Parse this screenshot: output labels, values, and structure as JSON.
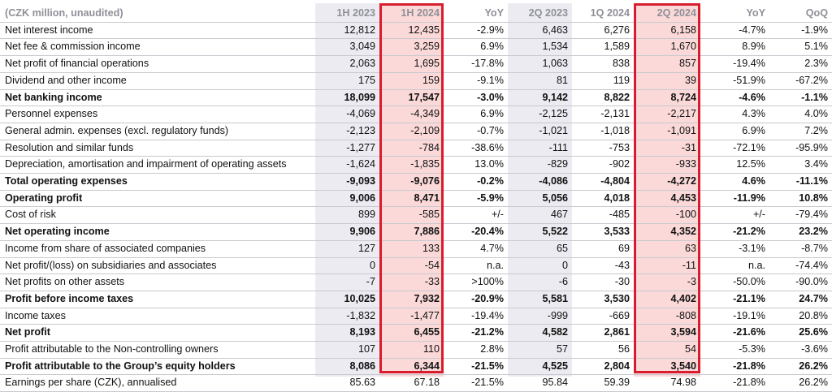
{
  "header": {
    "label": "(CZK million, unaudited)",
    "cols": [
      "1H 2023",
      "1H 2024",
      "YoY",
      "2Q 2023",
      "1Q 2024",
      "2Q 2024",
      "YoY",
      "QoQ"
    ]
  },
  "rows": [
    {
      "label": "Net interest income",
      "values": [
        "12,812",
        "12,435",
        "-2.9%",
        "6,463",
        "6,276",
        "6,158",
        "-4.7%",
        "-1.9%"
      ]
    },
    {
      "label": "Net fee & commission income",
      "values": [
        "3,049",
        "3,259",
        "6.9%",
        "1,534",
        "1,589",
        "1,670",
        "8.9%",
        "5.1%"
      ]
    },
    {
      "label": "Net profit of financial operations",
      "values": [
        "2,063",
        "1,695",
        "-17.8%",
        "1,063",
        "838",
        "857",
        "-19.4%",
        "2.3%"
      ]
    },
    {
      "label": "Dividend and other income",
      "values": [
        "175",
        "159",
        "-9.1%",
        "81",
        "119",
        "39",
        "-51.9%",
        "-67.2%"
      ]
    },
    {
      "label": "Net banking income",
      "bold": true,
      "values": [
        "18,099",
        "17,547",
        "-3.0%",
        "9,142",
        "8,822",
        "8,724",
        "-4.6%",
        "-1.1%"
      ]
    },
    {
      "label": "Personnel expenses",
      "values": [
        "-4,069",
        "-4,349",
        "6.9%",
        "-2,125",
        "-2,131",
        "-2,217",
        "4.3%",
        "4.0%"
      ]
    },
    {
      "label": "General admin. expenses (excl. regulatory funds)",
      "values": [
        "-2,123",
        "-2,109",
        "-0.7%",
        "-1,021",
        "-1,018",
        "-1,091",
        "6.9%",
        "7.2%"
      ]
    },
    {
      "label": "Resolution and similar funds",
      "values": [
        "-1,277",
        "-784",
        "-38.6%",
        "-111",
        "-753",
        "-31",
        "-72.1%",
        "-95.9%"
      ]
    },
    {
      "label": "Depreciation, amortisation and impairment of operating assets",
      "values": [
        "-1,624",
        "-1,835",
        "13.0%",
        "-829",
        "-902",
        "-933",
        "12.5%",
        "3.4%"
      ]
    },
    {
      "label": "Total operating expenses",
      "bold": true,
      "values": [
        "-9,093",
        "-9,076",
        "-0.2%",
        "-4,086",
        "-4,804",
        "-4,272",
        "4.6%",
        "-11.1%"
      ]
    },
    {
      "label": "Operating profit",
      "bold": true,
      "topline": true,
      "values": [
        "9,006",
        "8,471",
        "-5.9%",
        "5,056",
        "4,018",
        "4,453",
        "-11.9%",
        "10.8%"
      ]
    },
    {
      "label": "Cost of risk",
      "values": [
        "899",
        "-585",
        "+/-",
        "467",
        "-485",
        "-100",
        "+/-",
        "-79.4%"
      ]
    },
    {
      "label": "Net operating income",
      "bold": true,
      "values": [
        "9,906",
        "7,886",
        "-20.4%",
        "5,522",
        "3,533",
        "4,352",
        "-21.2%",
        "23.2%"
      ]
    },
    {
      "label": "Income from share of associated companies",
      "values": [
        "127",
        "133",
        "4.7%",
        "65",
        "69",
        "63",
        "-3.1%",
        "-8.7%"
      ]
    },
    {
      "label": "Net profit/(loss) on subsidiaries and associates",
      "values": [
        "0",
        "-54",
        "n.a.",
        "0",
        "-43",
        "-11",
        "n.a.",
        "-74.4%"
      ]
    },
    {
      "label": "Net profits on other assets",
      "values": [
        "-7",
        "-33",
        ">100%",
        "-6",
        "-30",
        "-3",
        "-50.0%",
        "-90.0%"
      ]
    },
    {
      "label": "Profit before income taxes",
      "bold": true,
      "values": [
        "10,025",
        "7,932",
        "-20.9%",
        "5,581",
        "3,530",
        "4,402",
        "-21.1%",
        "24.7%"
      ]
    },
    {
      "label": "Income taxes",
      "values": [
        "-1,832",
        "-1,477",
        "-19.4%",
        "-999",
        "-669",
        "-808",
        "-19.1%",
        "20.8%"
      ]
    },
    {
      "label": "Net profit",
      "bold": true,
      "values": [
        "8,193",
        "6,455",
        "-21.2%",
        "4,582",
        "2,861",
        "3,594",
        "-21.6%",
        "25.6%"
      ]
    },
    {
      "label": "Profit attributable to the Non-controlling owners",
      "values": [
        "107",
        "110",
        "2.8%",
        "57",
        "56",
        "54",
        "-5.3%",
        "-3.6%"
      ]
    },
    {
      "label": "Profit attributable to the Group’s equity holders",
      "bold": true,
      "values": [
        "8,086",
        "6,344",
        "-21.5%",
        "4,525",
        "2,804",
        "3,540",
        "-21.8%",
        "26.2%"
      ]
    },
    {
      "label": "Earnings per share (CZK), annualised",
      "values": [
        "85.63",
        "67.18",
        "-21.5%",
        "95.84",
        "59.39",
        "74.98",
        "-21.8%",
        "26.2%"
      ]
    }
  ],
  "colors": {
    "highlight_border": "#d81e2e",
    "highlight_fill": "#fbd9d9",
    "column_shade": "#ebebf1"
  }
}
